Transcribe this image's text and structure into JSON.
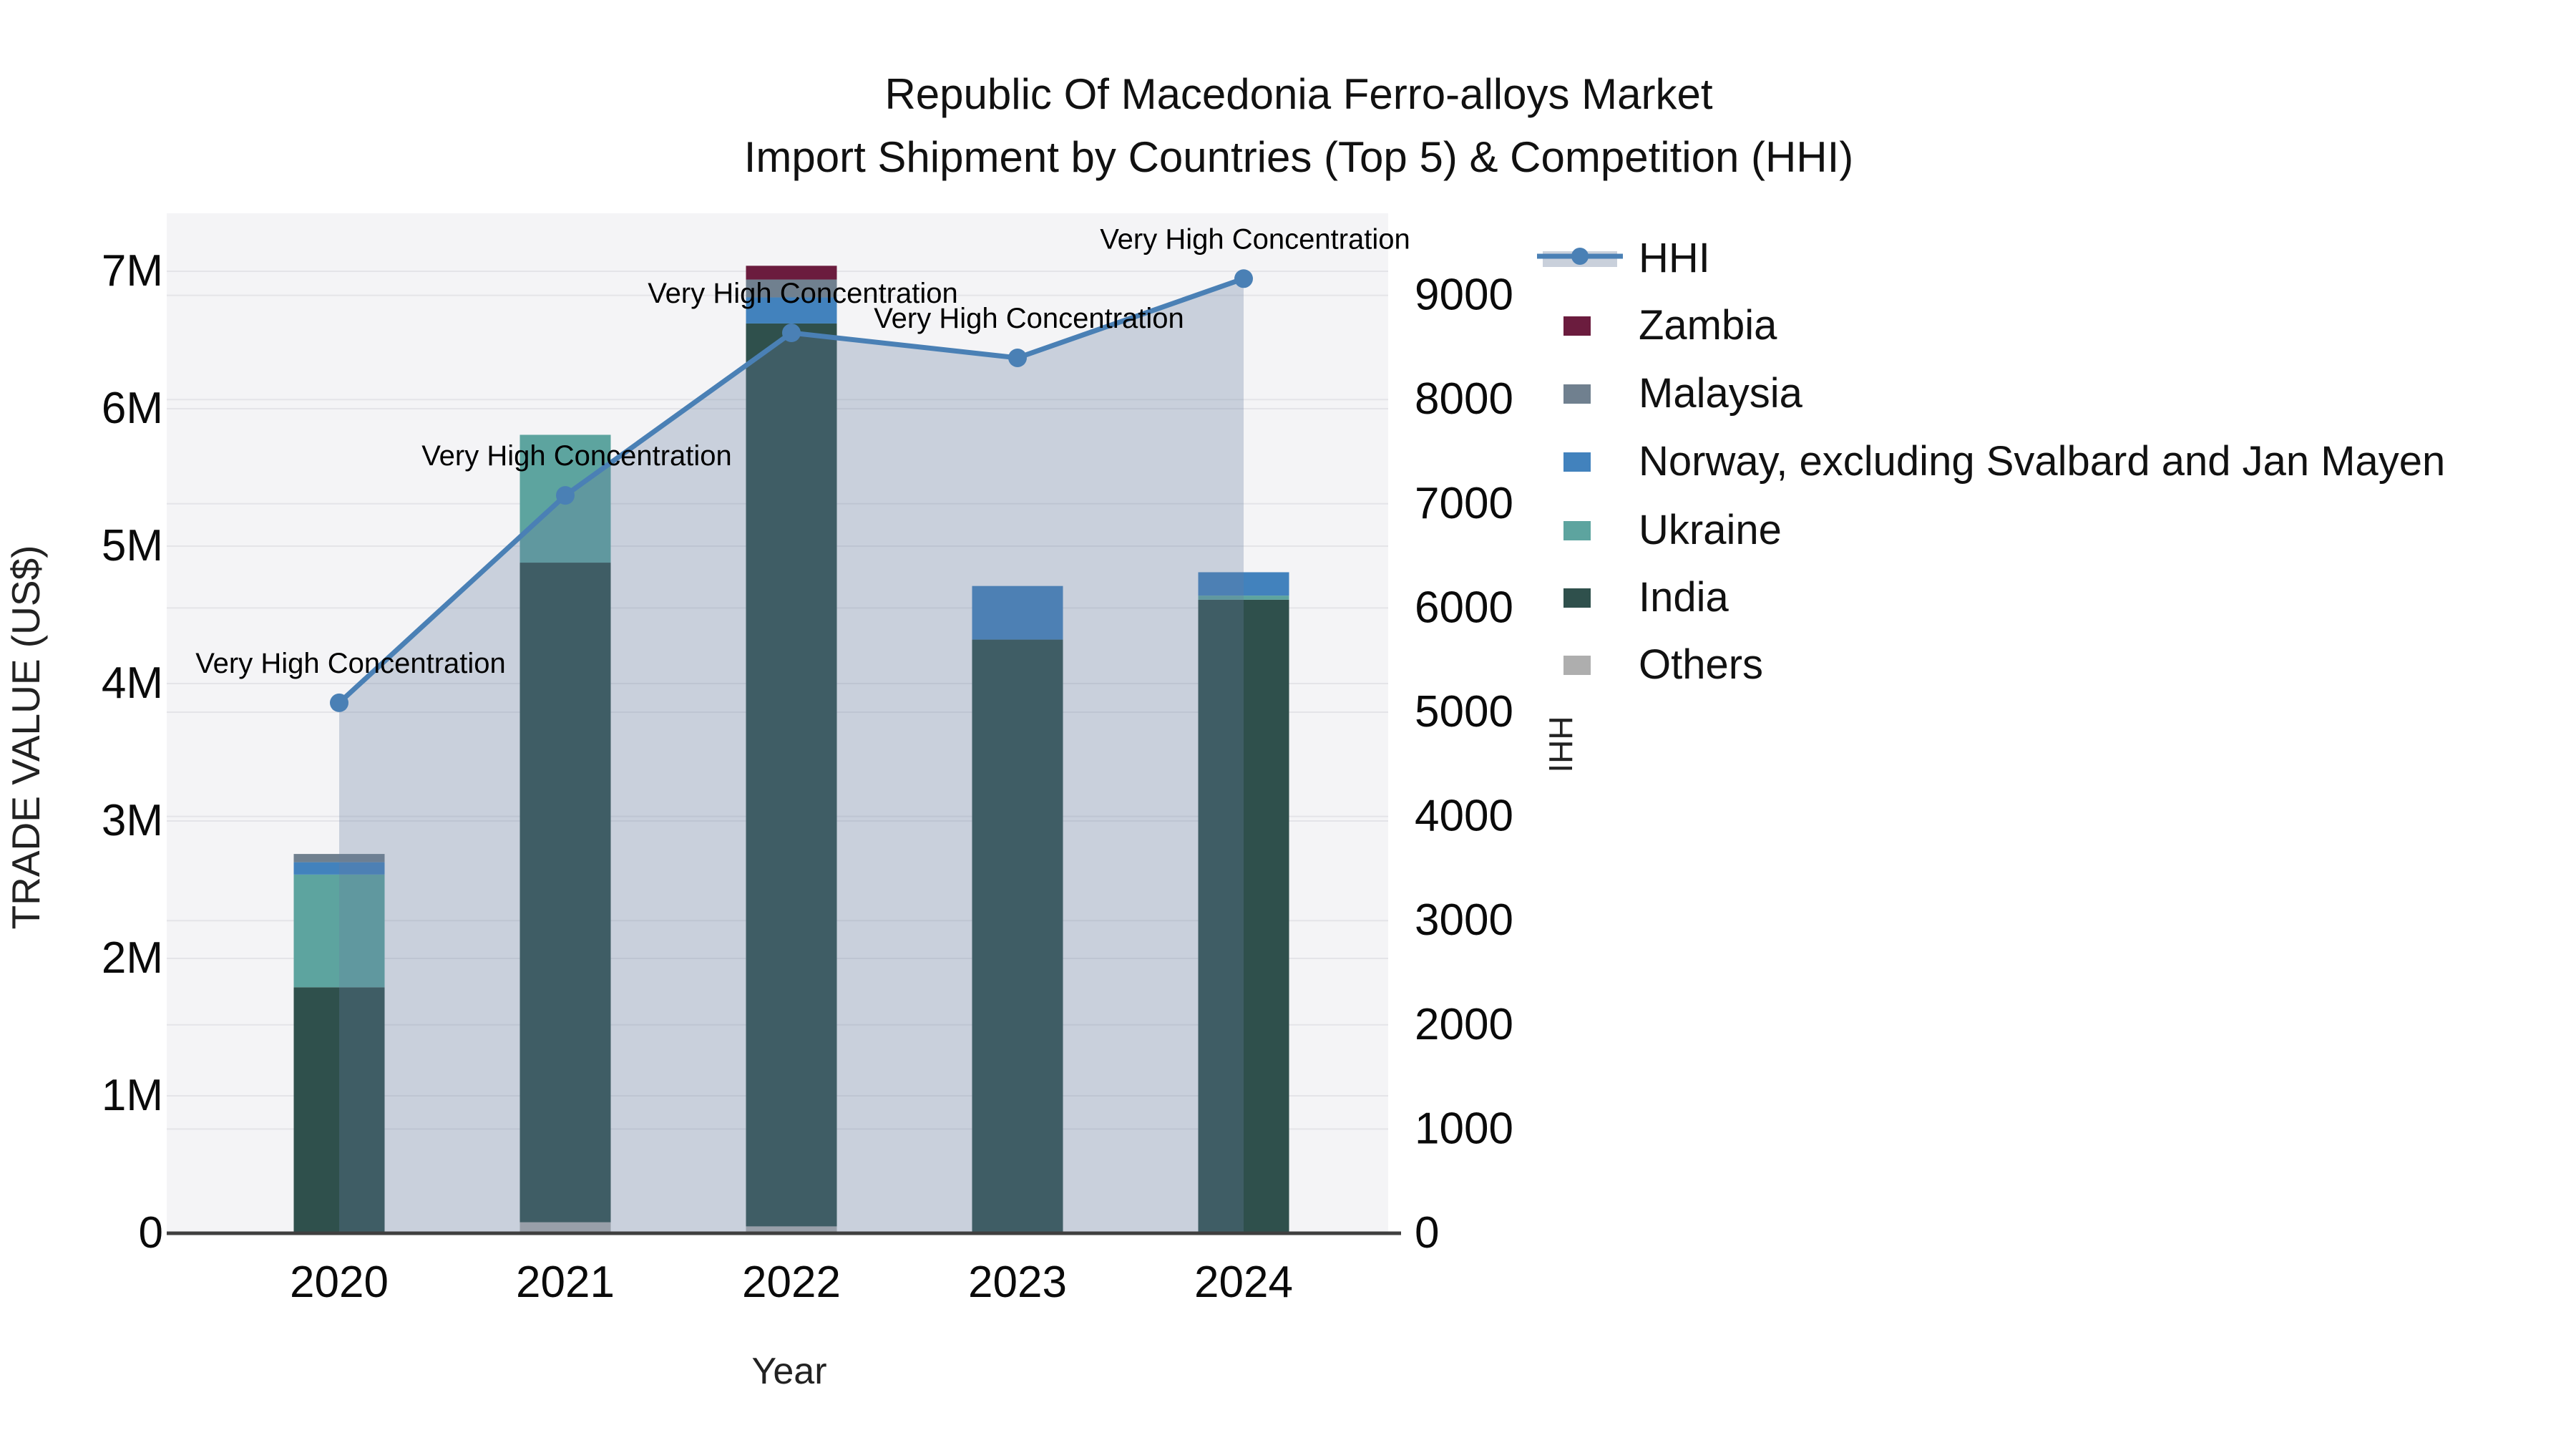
{
  "title": {
    "line1": "Republic Of Macedonia Ferro-alloys Market",
    "line2": "Import Shipment by Countries (Top 5) & Competition (HHI)"
  },
  "axes": {
    "left": {
      "title": "TRADE VALUE (US$)",
      "tick_labels": [
        "0",
        "1M",
        "2M",
        "3M",
        "4M",
        "5M",
        "6M",
        "7M"
      ]
    },
    "right": {
      "title": "HHI",
      "tick_labels": [
        "0",
        "1000",
        "2000",
        "3000",
        "4000",
        "5000",
        "6000",
        "7000",
        "8000",
        "9000"
      ]
    },
    "x": {
      "title": "Year",
      "tick_labels": [
        "2020",
        "2021",
        "2022",
        "2023",
        "2024"
      ]
    }
  },
  "legend": {
    "items": [
      {
        "label": "HHI",
        "kind": "line",
        "color": "#4a80b5",
        "band": "#c9d0db"
      },
      {
        "label": "Zambia",
        "kind": "bar",
        "color": "#6b1c3e"
      },
      {
        "label": "Malaysia",
        "kind": "bar",
        "color": "#70808f"
      },
      {
        "label": "Norway, excluding Svalbard and Jan Mayen",
        "kind": "bar",
        "color": "#4282bd"
      },
      {
        "label": "Ukraine",
        "kind": "bar",
        "color": "#5da49f"
      },
      {
        "label": "India",
        "kind": "bar",
        "color": "#2f504c"
      },
      {
        "label": "Others",
        "kind": "bar",
        "color": "#aeaeae"
      }
    ]
  },
  "colors": {
    "page_bg": "#ffffff",
    "plot_bg": "#f4f4f6",
    "grid": "#e4e4e8",
    "baseline": "#3f3f3f",
    "hhi_line": "#4a80b5",
    "hhi_fill": "rgba(104,126,158,0.30)",
    "annotation": "#000000"
  },
  "chart_data": {
    "type": "bar+line",
    "title": "Republic Of Macedonia Ferro-alloys Market — Import Shipment by Countries (Top 5) & Competition (HHI)",
    "categories": [
      "2020",
      "2021",
      "2022",
      "2023",
      "2024"
    ],
    "bar_value_unit": "US$ millions",
    "stack_order_bottom_to_top": [
      "Others",
      "India",
      "Ukraine",
      "Norway, excluding Svalbard and Jan Mayen",
      "Malaysia",
      "Zambia"
    ],
    "series": [
      {
        "name": "Others",
        "kind": "bar",
        "axis": "left",
        "color": "#aeaeae",
        "values": [
          0,
          0.08,
          0.05,
          0,
          0
        ]
      },
      {
        "name": "India",
        "kind": "bar",
        "axis": "left",
        "color": "#2f504c",
        "values": [
          1.79,
          4.8,
          6.57,
          4.32,
          4.61
        ]
      },
      {
        "name": "Ukraine",
        "kind": "bar",
        "axis": "left",
        "color": "#5da49f",
        "values": [
          0.82,
          0.93,
          0,
          0,
          0.03
        ]
      },
      {
        "name": "Norway, excluding Svalbard and Jan Mayen",
        "kind": "bar",
        "axis": "left",
        "color": "#4282bd",
        "values": [
          0.09,
          0,
          0.19,
          0.39,
          0.17
        ]
      },
      {
        "name": "Malaysia",
        "kind": "bar",
        "axis": "left",
        "color": "#70808f",
        "values": [
          0.06,
          0,
          0.13,
          0,
          0
        ]
      },
      {
        "name": "Zambia",
        "kind": "bar",
        "axis": "left",
        "color": "#6b1c3e",
        "values": [
          0,
          0,
          0.1,
          0,
          0
        ]
      },
      {
        "name": "HHI",
        "kind": "line",
        "axis": "right",
        "color": "#4a80b5",
        "values": [
          5090,
          7080,
          8640,
          8400,
          9160
        ],
        "annotations": [
          "Very High Concentration",
          "Very High Concentration",
          "Very High Concentration",
          "Very High Concentration",
          "Very High Concentration"
        ]
      }
    ],
    "bar_totals_usd_m": [
      2.76,
      5.81,
      7.04,
      4.71,
      4.81
    ],
    "left_axis": {
      "label": "TRADE VALUE (US$)",
      "range_usd": [
        0,
        7420000
      ],
      "tick_step": 1000000
    },
    "right_axis": {
      "label": "HHI",
      "range": [
        0,
        9790
      ],
      "tick_step": 1000
    },
    "xlabel": "Year",
    "grid": true,
    "legend_position": "right",
    "area_fill_under_line": true
  }
}
